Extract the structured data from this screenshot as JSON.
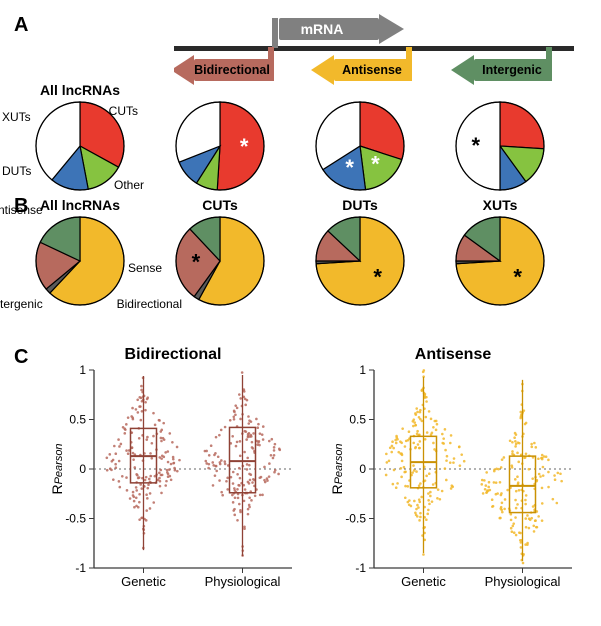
{
  "colors": {
    "cuts": "#e83a2e",
    "xuts": "#86c340",
    "duts": "#3d74b7",
    "other": "#ffffff",
    "antisense": "#f2b92b",
    "sense": "#5a5a5a",
    "intergenic": "#5f8f63",
    "bidirectional": "#b76a5e",
    "stroke": "#000000",
    "axis": "#3a3a3a",
    "dotted": "#666666",
    "mrna_gray": "#808080"
  },
  "panelA": {
    "label": "A",
    "legend": {
      "mrna": "mRNA",
      "bidirectional": "Bidirectional",
      "antisense": "Antisense",
      "intergenic": "Intergenic"
    },
    "pies": [
      {
        "title": "All lncRNAs",
        "labels": {
          "cuts": "CUTs",
          "xuts": "XUTs",
          "duts": "DUTs",
          "other": "Other"
        },
        "slices": [
          {
            "key": "cuts",
            "value": 33
          },
          {
            "key": "xuts",
            "value": 14
          },
          {
            "key": "duts",
            "value": 14
          },
          {
            "key": "other",
            "value": 39
          }
        ],
        "stars": []
      },
      {
        "title": "",
        "slices": [
          {
            "key": "cuts",
            "value": 51
          },
          {
            "key": "xuts",
            "value": 8
          },
          {
            "key": "duts",
            "value": 10
          },
          {
            "key": "other",
            "value": 31
          }
        ],
        "stars": [
          "cuts"
        ]
      },
      {
        "title": "",
        "slices": [
          {
            "key": "cuts",
            "value": 30
          },
          {
            "key": "xuts",
            "value": 18
          },
          {
            "key": "duts",
            "value": 18
          },
          {
            "key": "other",
            "value": 34
          }
        ],
        "stars": [
          "xuts",
          "duts"
        ]
      },
      {
        "title": "",
        "slices": [
          {
            "key": "cuts",
            "value": 26
          },
          {
            "key": "xuts",
            "value": 14
          },
          {
            "key": "duts",
            "value": 10
          },
          {
            "key": "other",
            "value": 50
          }
        ],
        "stars": [
          "other"
        ]
      }
    ]
  },
  "panelB": {
    "label": "B",
    "pies": [
      {
        "title": "All lncRNAs",
        "labels": {
          "antisense": "Antisense",
          "sense": "Sense",
          "intergenic": "Intergenic",
          "bidirectional": "Bidirectional"
        },
        "slices": [
          {
            "key": "antisense",
            "value": 62
          },
          {
            "key": "sense",
            "value": 2
          },
          {
            "key": "bidirectional",
            "value": 18
          },
          {
            "key": "intergenic",
            "value": 18
          }
        ],
        "stars": []
      },
      {
        "title": "CUTs",
        "slices": [
          {
            "key": "antisense",
            "value": 58
          },
          {
            "key": "sense",
            "value": 2
          },
          {
            "key": "bidirectional",
            "value": 28
          },
          {
            "key": "intergenic",
            "value": 12
          }
        ],
        "stars": [
          "bidirectional"
        ]
      },
      {
        "title": "DUTs",
        "slices": [
          {
            "key": "antisense",
            "value": 74
          },
          {
            "key": "sense",
            "value": 1
          },
          {
            "key": "bidirectional",
            "value": 12
          },
          {
            "key": "intergenic",
            "value": 13
          }
        ],
        "stars": [
          "antisense"
        ]
      },
      {
        "title": "XUTs",
        "slices": [
          {
            "key": "antisense",
            "value": 74
          },
          {
            "key": "sense",
            "value": 1
          },
          {
            "key": "bidirectional",
            "value": 10
          },
          {
            "key": "intergenic",
            "value": 15
          }
        ],
        "stars": [
          "antisense"
        ]
      }
    ]
  },
  "panelC": {
    "label": "C",
    "ylabel_prefix": "R",
    "ylabel_sub": "Pearson",
    "ylim": [
      -1,
      1
    ],
    "yticks": [
      -1,
      -0.5,
      0,
      0.5,
      1
    ],
    "plots": [
      {
        "title": "Bidirectional",
        "color": "#b76a5e",
        "categories": [
          "Genetic",
          "Physiological"
        ],
        "boxes": [
          {
            "q1": -0.14,
            "median": 0.13,
            "q3": 0.41,
            "whisker_lo": -0.82,
            "whisker_hi": 0.94
          },
          {
            "q1": -0.24,
            "median": 0.08,
            "q3": 0.42,
            "whisker_lo": -0.88,
            "whisker_hi": 0.95
          }
        ]
      },
      {
        "title": "Antisense",
        "color": "#f2b92b",
        "categories": [
          "Genetic",
          "Physiological"
        ],
        "boxes": [
          {
            "q1": -0.19,
            "median": 0.07,
            "q3": 0.33,
            "whisker_lo": -0.85,
            "whisker_hi": 0.93
          },
          {
            "q1": -0.44,
            "median": -0.17,
            "q3": 0.13,
            "whisker_lo": -0.93,
            "whisker_hi": 0.9
          }
        ]
      }
    ]
  }
}
